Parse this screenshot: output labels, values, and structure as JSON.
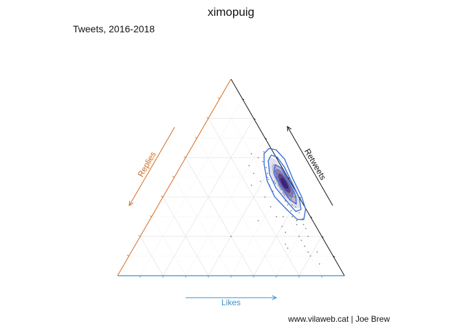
{
  "chart_data": {
    "type": "ternary-scatter",
    "title": "ximopuig",
    "subtitle": "Tweets, 2016-2018",
    "caption": "www.vilaweb.cat | Joe Brew",
    "axes": {
      "likes": {
        "label": "Likes",
        "color": "#3a8fc9"
      },
      "retweets": {
        "label": "Retweets",
        "color": "#111111"
      },
      "replies": {
        "label": "Replies",
        "color": "#d2691e"
      }
    },
    "grid": true,
    "grid_step": 0.2,
    "cluster": {
      "likes": 0.5,
      "retweets": 0.47,
      "replies": 0.03
    },
    "density_contour_color": "#3a6fd8",
    "density_fill_color": "#2a1070",
    "points": [
      [
        0.55,
        0.4,
        0.05
      ],
      [
        0.6,
        0.37,
        0.03
      ],
      [
        0.45,
        0.5,
        0.05
      ],
      [
        0.48,
        0.48,
        0.04
      ],
      [
        0.42,
        0.55,
        0.03
      ],
      [
        0.4,
        0.52,
        0.08
      ],
      [
        0.55,
        0.3,
        0.15
      ],
      [
        0.6,
        0.25,
        0.15
      ],
      [
        0.62,
        0.3,
        0.08
      ],
      [
        0.7,
        0.2,
        0.1
      ],
      [
        0.75,
        0.15,
        0.1
      ],
      [
        0.5,
        0.35,
        0.15
      ],
      [
        0.45,
        0.4,
        0.15
      ],
      [
        0.38,
        0.55,
        0.07
      ],
      [
        0.35,
        0.58,
        0.07
      ],
      [
        0.52,
        0.46,
        0.02
      ],
      [
        0.56,
        0.42,
        0.02
      ],
      [
        0.58,
        0.4,
        0.02
      ],
      [
        0.44,
        0.52,
        0.04
      ],
      [
        0.47,
        0.5,
        0.03
      ],
      [
        0.5,
        0.48,
        0.02
      ],
      [
        0.53,
        0.44,
        0.03
      ],
      [
        0.49,
        0.49,
        0.02
      ],
      [
        0.51,
        0.47,
        0.02
      ],
      [
        0.54,
        0.45,
        0.01
      ],
      [
        0.46,
        0.51,
        0.03
      ],
      [
        0.57,
        0.39,
        0.04
      ],
      [
        0.43,
        0.53,
        0.04
      ],
      [
        0.59,
        0.36,
        0.05
      ],
      [
        0.41,
        0.5,
        0.09
      ],
      [
        0.65,
        0.28,
        0.07
      ],
      [
        0.66,
        0.26,
        0.08
      ],
      [
        0.32,
        0.6,
        0.08
      ],
      [
        0.3,
        0.56,
        0.14
      ],
      [
        0.36,
        0.46,
        0.18
      ],
      [
        0.48,
        0.28,
        0.24
      ],
      [
        0.4,
        0.2,
        0.4
      ],
      [
        0.72,
        0.18,
        0.1
      ],
      [
        0.78,
        0.12,
        0.1
      ],
      [
        0.8,
        0.1,
        0.1
      ],
      [
        0.68,
        0.14,
        0.18
      ],
      [
        0.63,
        0.22,
        0.15
      ],
      [
        0.58,
        0.3,
        0.12
      ],
      [
        0.52,
        0.38,
        0.1
      ],
      [
        0.47,
        0.43,
        0.1
      ],
      [
        0.44,
        0.46,
        0.1
      ],
      [
        0.39,
        0.48,
        0.13
      ],
      [
        0.34,
        0.52,
        0.14
      ],
      [
        0.37,
        0.6,
        0.03
      ],
      [
        0.33,
        0.63,
        0.04
      ],
      [
        0.61,
        0.35,
        0.04
      ],
      [
        0.64,
        0.32,
        0.04
      ],
      [
        0.67,
        0.29,
        0.04
      ],
      [
        0.69,
        0.26,
        0.05
      ],
      [
        0.71,
        0.24,
        0.05
      ],
      [
        0.74,
        0.2,
        0.06
      ],
      [
        0.5,
        0.44,
        0.06
      ],
      [
        0.55,
        0.38,
        0.07
      ],
      [
        0.46,
        0.47,
        0.07
      ],
      [
        0.42,
        0.49,
        0.09
      ],
      [
        0.53,
        0.41,
        0.06
      ],
      [
        0.57,
        0.36,
        0.07
      ],
      [
        0.49,
        0.45,
        0.06
      ],
      [
        0.45,
        0.48,
        0.07
      ],
      [
        0.6,
        0.33,
        0.07
      ],
      [
        0.62,
        0.33,
        0.05
      ],
      [
        0.52,
        0.42,
        0.06
      ],
      [
        0.48,
        0.46,
        0.06
      ],
      [
        0.86,
        0.06,
        0.08
      ],
      [
        0.82,
        0.12,
        0.06
      ],
      [
        0.66,
        0.16,
        0.18
      ],
      [
        0.28,
        0.62,
        0.1
      ]
    ]
  }
}
